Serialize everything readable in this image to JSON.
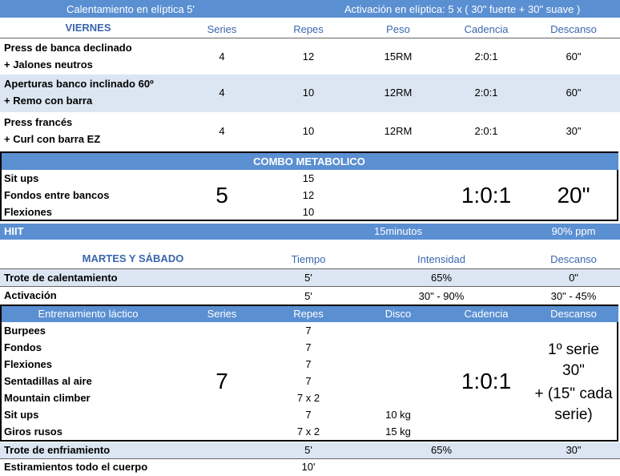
{
  "warmup": {
    "left": "Calentamiento en elíptica 5'",
    "right": "Activación en elíptica: 5 x ( 30\" fuerte + 30\" suave )"
  },
  "viernes": {
    "header": [
      "VIERNES",
      "Series",
      "Repes",
      "Peso",
      "Cadencia",
      "Descanso"
    ],
    "rows": [
      {
        "exercise": [
          "Press de banca declinado",
          "+ Jalones neutros"
        ],
        "series": 4,
        "reps": 12,
        "weight": "15RM",
        "cadence": "2:0:1",
        "rest": "60\""
      },
      {
        "exercise": [
          "Aperturas banco inclinado 60º",
          "+ Remo con barra"
        ],
        "series": 4,
        "reps": 10,
        "weight": "12RM",
        "cadence": "2:0:1",
        "rest": "60\""
      },
      {
        "exercise": [
          "Press francés",
          "+ Curl con barra EZ"
        ],
        "series": 4,
        "reps": 10,
        "weight": "12RM",
        "cadence": "2:0:1",
        "rest": "30\""
      }
    ]
  },
  "combo": {
    "title": "COMBO METABOLICO",
    "exercises": [
      {
        "name": "Sit ups",
        "reps": 15
      },
      {
        "name": "Fondos entre bancos",
        "reps": 12
      },
      {
        "name": "Flexiones",
        "reps": 10
      }
    ],
    "series": 5,
    "cadence": "1:0:1",
    "rest": "20\""
  },
  "hiit": {
    "label": "HIIT",
    "time": "15minutos",
    "intensity": "90% ppm"
  },
  "martes": {
    "header": [
      "MARTES Y SÁBADO",
      "Tiempo",
      "Intensidad",
      "Descanso"
    ],
    "rows": [
      [
        "Trote de calentamiento",
        "5'",
        "65%",
        "0\""
      ],
      [
        "Activación",
        "5'",
        "30\" -  90%",
        "30\" - 45%"
      ]
    ]
  },
  "lactic": {
    "header": [
      "Entrenamiento láctico",
      "Series",
      "Repes",
      "Disco",
      "Cadencia",
      "Descanso"
    ],
    "exercises": [
      {
        "name": "Burpees",
        "reps": 7
      },
      {
        "name": "Fondos",
        "reps": 7
      },
      {
        "name": "Flexiones",
        "reps": 7
      },
      {
        "name": "Sentadillas al aire",
        "reps": 7
      },
      {
        "name": "Mountain climber",
        "reps": "7 x 2"
      },
      {
        "name": "Sit ups",
        "reps": 7,
        "disc": "10 kg"
      },
      {
        "name": "Giros rusos",
        "reps": "7 x 2",
        "disc": "15 kg"
      }
    ],
    "series": 7,
    "cadence": "1:0:1",
    "rest": [
      "1º serie",
      "30\"",
      "+ (15\" cada",
      "serie)"
    ]
  },
  "cooldown": {
    "rows": [
      [
        "Trote de enfriamiento",
        "5'",
        "65%",
        "30\""
      ],
      [
        "Estiramientos todo el cuerpo",
        "10'"
      ]
    ]
  }
}
